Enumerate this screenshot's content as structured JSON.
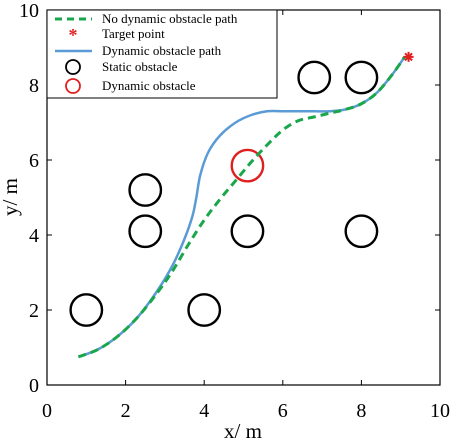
{
  "chart_data": {
    "type": "scatter",
    "xlabel": "x/ m",
    "ylabel": "y/ m",
    "xlim": [
      0,
      10
    ],
    "ylim": [
      0,
      10
    ],
    "xticks": [
      "0",
      "2",
      "4",
      "6",
      "8",
      "10"
    ],
    "yticks": [
      "0",
      "2",
      "4",
      "6",
      "8",
      "10"
    ],
    "grid": false,
    "legend_position": "top-left",
    "series": [
      {
        "name": "No dynamic obstacle path",
        "kind": "line",
        "style": "dashed",
        "color": "#1aa64a",
        "x": [
          0.8,
          1.3,
          1.8,
          2.3,
          2.8,
          3.2,
          3.6,
          4.0,
          4.4,
          4.8,
          5.2,
          5.6,
          6.0,
          6.4,
          6.8,
          7.2,
          7.6,
          8.0,
          8.4,
          8.8,
          9.1
        ],
        "y": [
          0.75,
          0.95,
          1.3,
          1.8,
          2.45,
          3.05,
          3.75,
          4.4,
          4.95,
          5.45,
          5.95,
          6.4,
          6.8,
          7.05,
          7.15,
          7.25,
          7.35,
          7.5,
          7.8,
          8.3,
          8.75
        ]
      },
      {
        "name": "Target point",
        "kind": "marker",
        "color": "#e02020",
        "x": [
          9.2
        ],
        "y": [
          8.75
        ]
      },
      {
        "name": "Dynamic obstacle path",
        "kind": "line",
        "style": "solid",
        "color": "#5b9bd5",
        "x": [
          0.8,
          1.3,
          1.8,
          2.3,
          2.8,
          3.2,
          3.5,
          3.7,
          3.8,
          3.9,
          4.1,
          4.4,
          4.8,
          5.2,
          5.6,
          6.0,
          6.4,
          6.8,
          7.2,
          7.6,
          8.0,
          8.4,
          8.8,
          9.1
        ],
        "y": [
          0.75,
          0.95,
          1.3,
          1.8,
          2.5,
          3.2,
          3.9,
          4.5,
          5.0,
          5.6,
          6.2,
          6.65,
          7.0,
          7.2,
          7.3,
          7.3,
          7.3,
          7.3,
          7.3,
          7.35,
          7.5,
          7.8,
          8.3,
          8.75
        ]
      },
      {
        "name": "Static obstacle",
        "kind": "circle",
        "color": "#000000",
        "radius": 0.4,
        "x": [
          1.0,
          4.0,
          2.5,
          2.5,
          5.1,
          8.0,
          6.8,
          8.0
        ],
        "y": [
          2.0,
          2.0,
          4.1,
          5.2,
          4.1,
          4.1,
          8.2,
          8.2
        ]
      },
      {
        "name": "Dynamic obstacle",
        "kind": "circle",
        "color": "#e02020",
        "radius": 0.4,
        "x": [
          5.1
        ],
        "y": [
          5.85
        ]
      }
    ]
  }
}
